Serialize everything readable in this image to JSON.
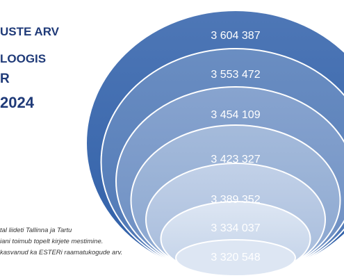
{
  "title_lines": [
    "USTE ARV",
    "LOOGIS",
    "R",
    "2024"
  ],
  "notes": [
    "tal liideti Tallinna ja Tartu",
    "iani toimub topelt kirjete mestimine.",
    "kasvanud ka ESTERi raamatukogude arv."
  ],
  "chart_data": {
    "type": "funnel",
    "title": "",
    "values": [
      3604387,
      3553472,
      3454109,
      3423327,
      3389352,
      3334037,
      3320548
    ],
    "labels": [
      "3 604 387",
      "3 553 472",
      "3 454 109",
      "3 423 327",
      "3 389 352",
      "3 334 037",
      "3 320 548"
    ],
    "colors": {
      "outer": "#2f5fa8",
      "inner": "#dde6f3",
      "border": "#ffffff",
      "label": "#ffffff",
      "title": "#1f3a78"
    }
  }
}
